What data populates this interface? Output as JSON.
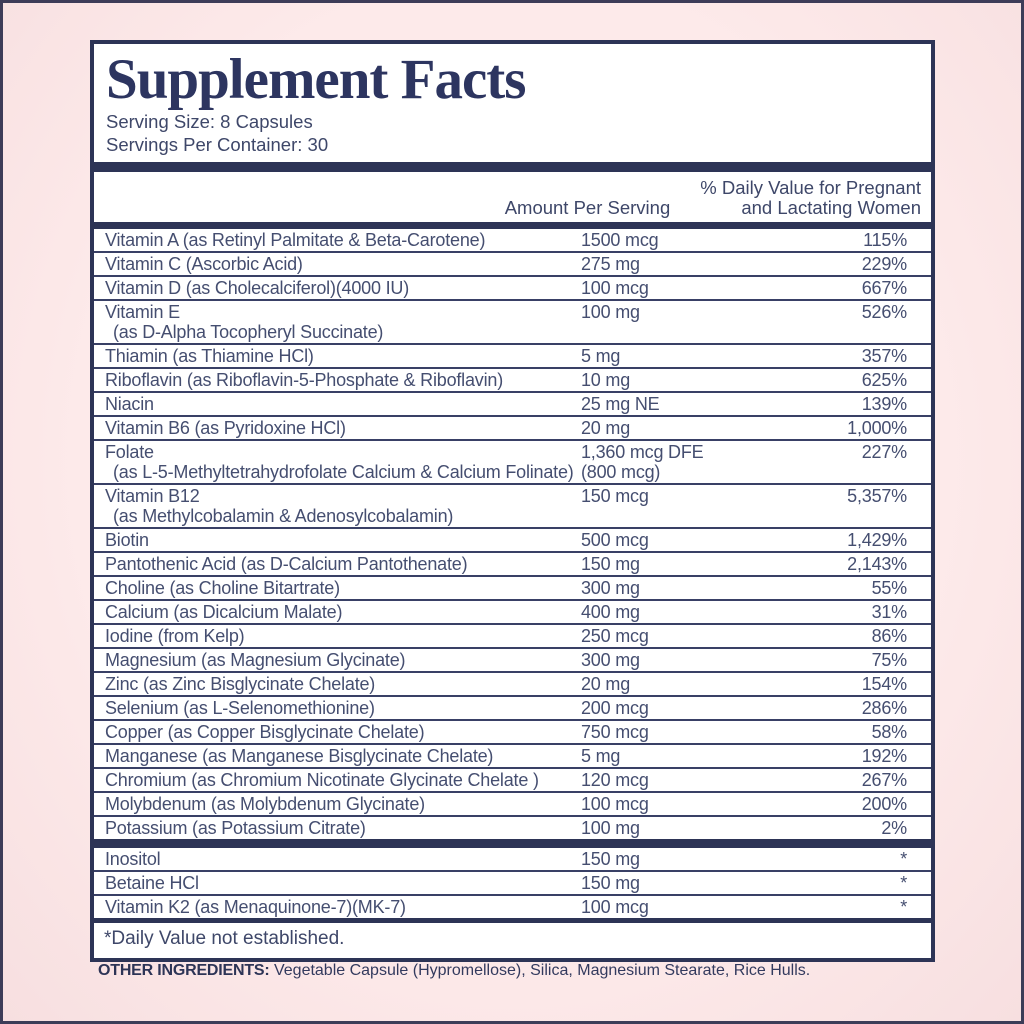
{
  "panel": {
    "title": "Supplement Facts",
    "serving_size": "Serving Size: 8 Capsules",
    "servings_per_container": "Servings Per Container: 30",
    "columns": {
      "amount": "Amount Per Serving",
      "dv_line1": "% Daily Value for Pregnant",
      "dv_line2": "and Lactating Women"
    },
    "footnote": "*Daily Value not established."
  },
  "rows": [
    {
      "name": "Vitamin A (as Retinyl Palmitate & Beta-Carotene)",
      "amount": "1500 mcg",
      "dv": "115%"
    },
    {
      "name": "Vitamin C (Ascorbic Acid)",
      "amount": "275 mg",
      "dv": "229%"
    },
    {
      "name": "Vitamin D (as Cholecalciferol)(4000 IU)",
      "amount": "100 mcg",
      "dv": "667%"
    },
    {
      "name": "Vitamin E",
      "name2": "(as D-Alpha Tocopheryl Succinate)",
      "amount": "100 mg",
      "dv": "526%"
    },
    {
      "name": "Thiamin (as Thiamine HCl)",
      "amount": "5 mg",
      "dv": "357%"
    },
    {
      "name": "Riboflavin (as Riboflavin-5-Phosphate & Riboflavin)",
      "amount": "10 mg",
      "dv": "625%"
    },
    {
      "name": "Niacin",
      "amount": "25 mg NE",
      "dv": "139%"
    },
    {
      "name": "Vitamin B6 (as Pyridoxine HCl)",
      "amount": "20 mg",
      "dv": "1,000%"
    },
    {
      "name": "Folate",
      "name2": "(as L-5-Methyltetrahydrofolate Calcium & Calcium Folinate)",
      "amount": "1,360 mcg DFE",
      "amount2": "(800 mcg)",
      "dv": "227%"
    },
    {
      "name": "Vitamin B12",
      "name2": "(as Methylcobalamin & Adenosylcobalamin)",
      "amount": "150 mcg",
      "dv": "5,357%"
    },
    {
      "name": "Biotin",
      "amount": "500 mcg",
      "dv": "1,429%"
    },
    {
      "name": "Pantothenic Acid (as D-Calcium Pantothenate)",
      "amount": "150 mg",
      "dv": "2,143%"
    },
    {
      "name": "Choline (as Choline Bitartrate)",
      "amount": "300 mg",
      "dv": "55%"
    },
    {
      "name": "Calcium (as Dicalcium Malate)",
      "amount": "400 mg",
      "dv": "31%"
    },
    {
      "name": "Iodine (from Kelp)",
      "amount": "250 mcg",
      "dv": "86%"
    },
    {
      "name": "Magnesium (as Magnesium Glycinate)",
      "amount": "300 mg",
      "dv": "75%"
    },
    {
      "name": "Zinc (as Zinc Bisglycinate Chelate)",
      "amount": "20 mg",
      "dv": "154%"
    },
    {
      "name": "Selenium (as L-Selenomethionine)",
      "amount": "200 mcg",
      "dv": "286%"
    },
    {
      "name": "Copper (as Copper Bisglycinate Chelate)",
      "amount": "750 mcg",
      "dv": "58%"
    },
    {
      "name": "Manganese (as Manganese Bisglycinate Chelate)",
      "amount": "5 mg",
      "dv": "192%"
    },
    {
      "name": "Chromium (as Chromium Nicotinate Glycinate Chelate )",
      "amount": "120 mcg",
      "dv": "267%"
    },
    {
      "name": "Molybdenum (as Molybdenum Glycinate)",
      "amount": "100 mcg",
      "dv": "200%"
    },
    {
      "name": "Potassium (as Potassium Citrate)",
      "amount": "100 mg",
      "dv": "2%"
    }
  ],
  "extra_rows": [
    {
      "name": "Inositol",
      "amount": "150 mg",
      "dv": "*"
    },
    {
      "name": "Betaine HCl",
      "amount": "150 mg",
      "dv": "*"
    },
    {
      "name": "Vitamin K2 (as Menaquinone-7)(MK-7)",
      "amount": "100 mcg",
      "dv": "*"
    }
  ],
  "other_ingredients": {
    "label": "OTHER INGREDIENTS:",
    "text": " Vegetable Capsule (Hypromellose), Silica, Magnesium Stearate, Rice Hulls."
  },
  "colors": {
    "background_pink": "#fbe7e7",
    "navy": "#2d3456",
    "row_text": "#454e70",
    "panel_white": "#ffffff"
  }
}
